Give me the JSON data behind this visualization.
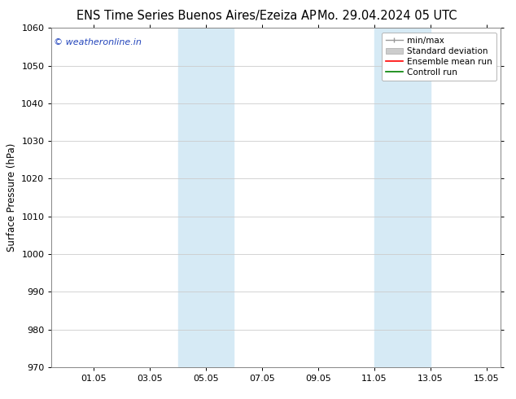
{
  "title_left": "ENS Time Series Buenos Aires/Ezeiza AP",
  "title_right": "Mo. 29.04.2024 05 UTC",
  "ylabel": "Surface Pressure (hPa)",
  "xlim": [
    -0.5,
    15.5
  ],
  "ylim": [
    970,
    1060
  ],
  "yticks": [
    970,
    980,
    990,
    1000,
    1010,
    1020,
    1030,
    1040,
    1050,
    1060
  ],
  "xtick_labels": [
    "01.05",
    "03.05",
    "05.05",
    "07.05",
    "09.05",
    "11.05",
    "13.05",
    "15.05"
  ],
  "xtick_positions": [
    1,
    3,
    5,
    7,
    9,
    11,
    13,
    15
  ],
  "shaded_regions": [
    {
      "xmin": 4.0,
      "xmax": 6.0
    },
    {
      "xmin": 11.0,
      "xmax": 13.0
    }
  ],
  "shade_color": "#d6eaf5",
  "watermark_text": "© weatheronline.in",
  "watermark_color": "#2244bb",
  "background_color": "#ffffff",
  "grid_color": "#cccccc",
  "title_fontsize": 10.5,
  "axis_label_fontsize": 8.5,
  "tick_fontsize": 8,
  "legend_fontsize": 7.5,
  "spine_color": "#888888"
}
